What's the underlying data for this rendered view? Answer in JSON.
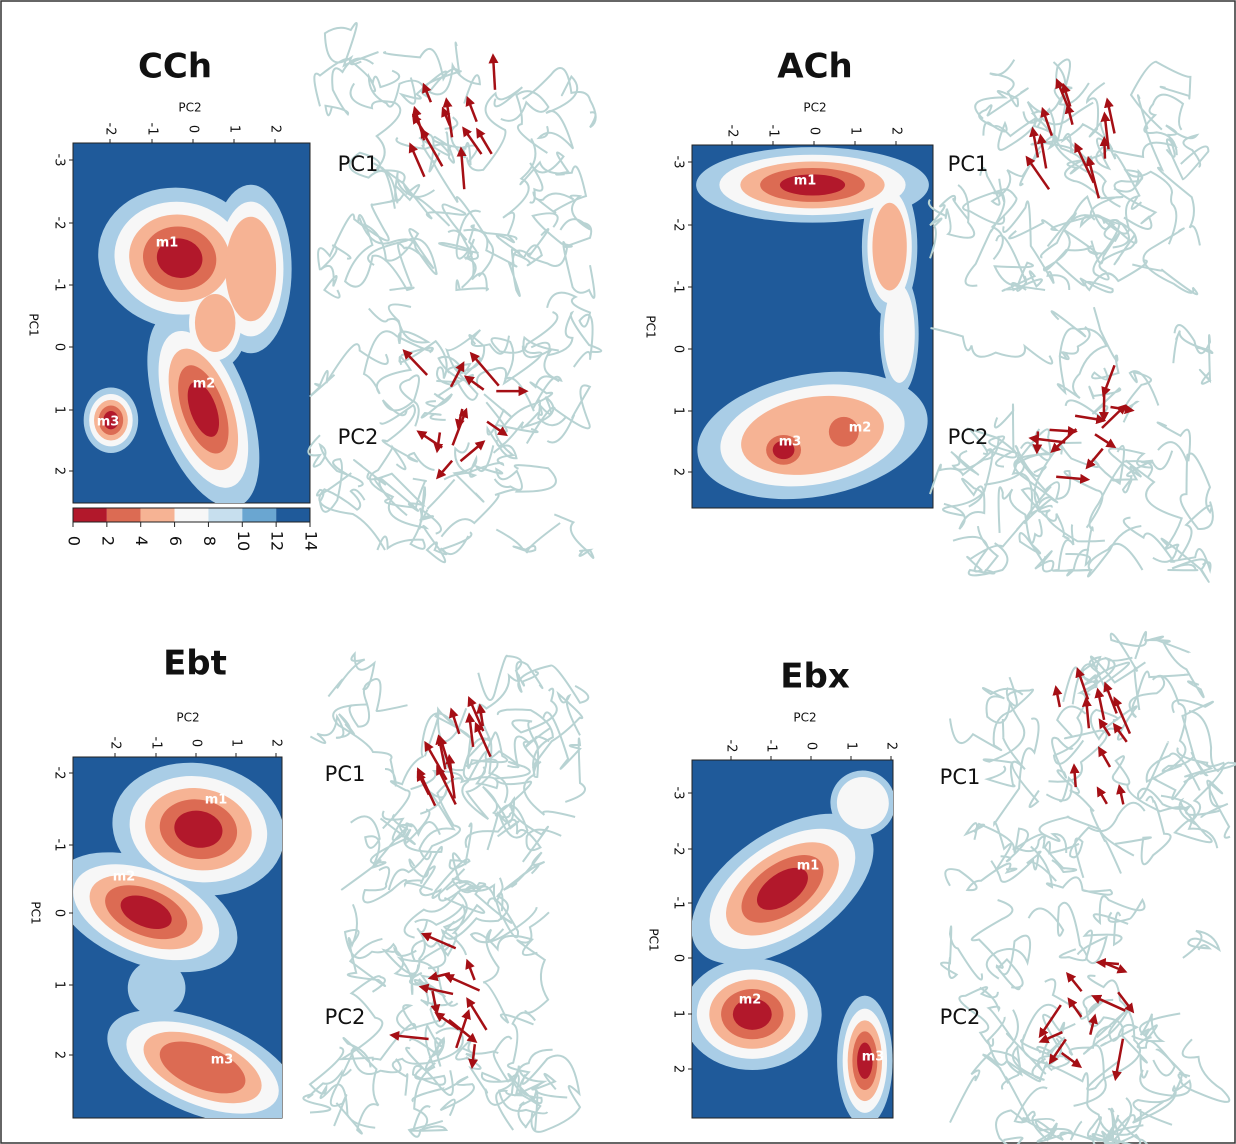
{
  "panels": [
    {
      "title": "CCh",
      "x_axis_label": "PC2",
      "y_axis_label": "PC1",
      "x_ticks": [
        -2,
        -1,
        0,
        1,
        2
      ],
      "y_ticks": [
        -3,
        -2,
        -1,
        0,
        1,
        2
      ],
      "minima": [
        "m1",
        "m2",
        "m3"
      ],
      "structure_labels": [
        "PC1",
        "PC2"
      ]
    },
    {
      "title": "ACh",
      "x_axis_label": "PC2",
      "y_axis_label": "PC1",
      "x_ticks": [
        -2,
        -1,
        0,
        1,
        2
      ],
      "y_ticks": [
        -3,
        -2,
        -1,
        0,
        1,
        2
      ],
      "minima": [
        "m1",
        "m2",
        "m3"
      ],
      "structure_labels": [
        "PC1",
        "PC2"
      ]
    },
    {
      "title": "Ebt",
      "x_axis_label": "PC2",
      "y_axis_label": "PC1",
      "x_ticks": [
        -2,
        -1,
        0,
        1,
        2
      ],
      "y_ticks": [
        -2,
        -1,
        0,
        1,
        2
      ],
      "minima": [
        "m1",
        "m2",
        "m3"
      ],
      "structure_labels": [
        "PC1",
        "PC2"
      ]
    },
    {
      "title": "Ebx",
      "x_axis_label": "PC2",
      "y_axis_label": "PC1",
      "x_ticks": [
        -2,
        -1,
        0,
        1,
        2
      ],
      "y_ticks": [
        -3,
        -2,
        -1,
        0,
        1,
        2
      ],
      "minima": [
        "m1",
        "m2",
        "m3"
      ],
      "structure_labels": [
        "PC1",
        "PC2"
      ]
    }
  ],
  "colorbar": {
    "ticks": [
      0,
      2,
      4,
      6,
      8,
      10,
      12,
      14
    ]
  }
}
